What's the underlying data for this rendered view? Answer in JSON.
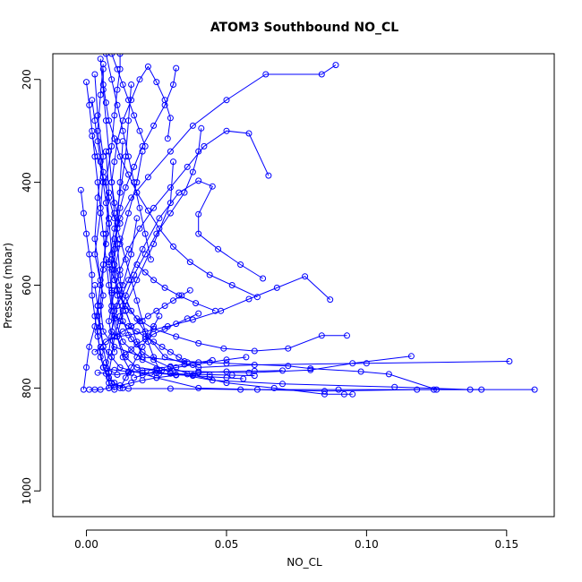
{
  "chart_data": {
    "type": "line",
    "title": "ATOM3 Southbound NO_CL",
    "xlabel": "NO_CL",
    "ylabel": "Pressure (mbar)",
    "xlim": [
      -0.012,
      0.167
    ],
    "ylim": [
      1050,
      150
    ],
    "y_reversed": true,
    "grid": false,
    "legend": "none",
    "x_ticks": [
      0.0,
      0.05,
      0.1,
      0.15
    ],
    "x_tick_labels": [
      "0.00",
      "0.05",
      "0.10",
      "0.15"
    ],
    "y_ticks": [
      200,
      400,
      600,
      800,
      1000
    ],
    "y_tick_labels": [
      "200",
      "400",
      "600",
      "800",
      "1000"
    ],
    "colors": {
      "series": "#0000ff",
      "axis": "#000000",
      "background": "#ffffff"
    },
    "marker": "open-circle",
    "series": [
      {
        "x": [
          0.16,
          0.124,
          0.09,
          0.055,
          0.03,
          0.015,
          0.008,
          0.005,
          0.004,
          0.006,
          0.003,
          0.005,
          0.006,
          0.004,
          0.005,
          0.006
        ],
        "y": [
          803,
          803,
          803,
          803,
          801,
          801,
          790,
          740,
          690,
          620,
          540,
          460,
          380,
          300,
          230,
          170
        ]
      },
      {
        "x": [
          0.151,
          0.1,
          0.06,
          0.04,
          0.028,
          0.022,
          0.016,
          0.012,
          0.009,
          0.008,
          0.007,
          0.009,
          0.01,
          0.011,
          0.012,
          0.012
        ],
        "y": [
          748,
          752,
          755,
          760,
          740,
          700,
          650,
          600,
          540,
          470,
          400,
          330,
          270,
          220,
          180,
          150
        ]
      },
      {
        "x": [
          0.141,
          0.118,
          0.085,
          0.061,
          0.04,
          0.025,
          0.012,
          0.006,
          0.004,
          0.005,
          0.003,
          0.004,
          0.006,
          0.004,
          0.003
        ],
        "y": [
          803,
          803,
          806,
          803,
          800,
          780,
          760,
          720,
          660,
          590,
          510,
          430,
          350,
          270,
          190
        ]
      },
      {
        "x": [
          0.137,
          0.11,
          0.07,
          0.045,
          0.03,
          0.02,
          0.013,
          0.01,
          0.009,
          0.008,
          0.01,
          0.012,
          0.014,
          0.015,
          0.016
        ],
        "y": [
          803,
          798,
          792,
          785,
          770,
          745,
          710,
          665,
          615,
          555,
          490,
          420,
          350,
          280,
          210
        ]
      },
      {
        "x": [
          0.125,
          0.108,
          0.098,
          0.08,
          0.072,
          0.05,
          0.035,
          0.02,
          0.01,
          0.006,
          0.005,
          0.006,
          0.007,
          0.008,
          0.007
        ],
        "y": [
          803,
          773,
          768,
          762,
          757,
          752,
          748,
          740,
          720,
          690,
          640,
          570,
          500,
          420,
          340
        ]
      },
      {
        "x": [
          0.116,
          0.095,
          0.08,
          0.058,
          0.04,
          0.025,
          0.018,
          0.014,
          0.011,
          0.013,
          0.018,
          0.024,
          0.03,
          0.031
        ],
        "y": [
          738,
          752,
          765,
          770,
          768,
          765,
          760,
          740,
          700,
          650,
          590,
          520,
          440,
          360
        ]
      },
      {
        "x": [
          0.095,
          0.092,
          0.085,
          0.067,
          0.05,
          0.038,
          0.03,
          0.024,
          0.02,
          0.016,
          0.013,
          0.011,
          0.01,
          0.011,
          0.012,
          0.013
        ],
        "y": [
          812,
          812,
          812,
          800,
          790,
          775,
          760,
          745,
          730,
          705,
          670,
          620,
          560,
          480,
          400,
          320
        ]
      },
      {
        "x": [
          0.093,
          0.084,
          0.072,
          0.06,
          0.049,
          0.04,
          0.032,
          0.024,
          0.018,
          0.014,
          0.011,
          0.01,
          0.012,
          0.015,
          0.018,
          0.02
        ],
        "y": [
          698,
          698,
          723,
          728,
          723,
          713,
          700,
          685,
          665,
          640,
          610,
          570,
          520,
          460,
          400,
          340
        ]
      },
      {
        "x": [
          0.087,
          0.078,
          0.068,
          0.058,
          0.048,
          0.038,
          0.029,
          0.021,
          0.015,
          0.011,
          0.009,
          0.01,
          0.013,
          0.016,
          0.018
        ],
        "y": [
          628,
          583,
          605,
          627,
          650,
          667,
          680,
          690,
          697,
          700,
          690,
          650,
          600,
          540,
          470
        ]
      },
      {
        "x": [
          0.089,
          0.084,
          0.064,
          0.05,
          0.038,
          0.03,
          0.022,
          0.016,
          0.012,
          0.01,
          0.009,
          0.01,
          0.012,
          0.014,
          0.016
        ],
        "y": [
          172,
          190,
          190,
          240,
          290,
          340,
          390,
          430,
          470,
          510,
          550,
          590,
          620,
          650,
          680
        ]
      },
      {
        "x": [
          0.065,
          0.058,
          0.05,
          0.042,
          0.036,
          0.03,
          0.024,
          0.019,
          0.015,
          0.012,
          0.01,
          0.009,
          0.008,
          0.009,
          0.01
        ],
        "y": [
          387,
          305,
          300,
          330,
          370,
          410,
          450,
          490,
          530,
          570,
          610,
          640,
          670,
          700,
          730
        ]
      },
      {
        "x": [
          0.063,
          0.055,
          0.047,
          0.04,
          0.04,
          0.045,
          0.04,
          0.033,
          0.026,
          0.02,
          0.015,
          0.011,
          0.009,
          0.008,
          0.007
        ],
        "y": [
          587,
          560,
          530,
          500,
          462,
          408,
          397,
          420,
          470,
          530,
          590,
          640,
          690,
          730,
          760
        ]
      },
      {
        "x": [
          0.061,
          0.052,
          0.044,
          0.037,
          0.031,
          0.026,
          0.022,
          0.018,
          0.015,
          0.012,
          0.01,
          0.008,
          0.007,
          0.006,
          0.006
        ],
        "y": [
          623,
          600,
          580,
          555,
          525,
          490,
          455,
          420,
          385,
          350,
          315,
          280,
          245,
          210,
          180
        ]
      },
      {
        "x": [
          0.041,
          0.04,
          0.038,
          0.035,
          0.03,
          0.025,
          0.021,
          0.017,
          0.014,
          0.012,
          0.01,
          0.009,
          0.008,
          0.008
        ],
        "y": [
          295,
          340,
          380,
          420,
          460,
          500,
          540,
          580,
          620,
          660,
          700,
          740,
          770,
          800
        ]
      },
      {
        "x": [
          0.032,
          0.031,
          0.028,
          0.024,
          0.02,
          0.017,
          0.014,
          0.012,
          0.011,
          0.01,
          0.009,
          0.009,
          0.009
        ],
        "y": [
          178,
          210,
          250,
          290,
          330,
          370,
          410,
          450,
          490,
          530,
          570,
          610,
          650
        ]
      },
      {
        "x": [
          0.029,
          0.03,
          0.028,
          0.025,
          0.022,
          0.019,
          0.016,
          0.013,
          0.011,
          0.01,
          0.009,
          0.01,
          0.012
        ],
        "y": [
          315,
          275,
          240,
          205,
          175,
          200,
          240,
          280,
          320,
          360,
          400,
          440,
          480
        ]
      },
      {
        "x": [
          0.001,
          0.003,
          0.005,
          0.008,
          0.01,
          0.012,
          0.016,
          0.02,
          0.025,
          0.032,
          0.04,
          0.05,
          0.06,
          0.07
        ],
        "y": [
          803,
          803,
          803,
          800,
          798,
          795,
          790,
          785,
          780,
          775,
          770,
          768,
          767,
          766
        ]
      },
      {
        "x": [
          -0.001,
          0.0,
          0.001,
          0.003,
          0.004,
          0.005,
          0.006,
          0.007,
          0.008,
          0.007,
          0.006,
          0.005,
          0.004,
          0.003,
          0.002
        ],
        "y": [
          803,
          760,
          720,
          680,
          640,
          600,
          560,
          520,
          480,
          440,
          400,
          360,
          320,
          280,
          240
        ]
      },
      {
        "x": [
          -0.002,
          -0.001,
          0.0,
          0.001,
          0.002,
          0.002,
          0.003,
          0.004,
          0.005,
          0.006,
          0.008,
          0.01,
          0.013
        ],
        "y": [
          415,
          460,
          500,
          540,
          580,
          620,
          660,
          700,
          730,
          760,
          780,
          790,
          800
        ]
      },
      {
        "x": [
          0.0,
          0.001,
          0.002,
          0.003,
          0.004,
          0.005,
          0.006,
          0.007,
          0.008,
          0.009,
          0.011,
          0.013,
          0.016
        ],
        "y": [
          205,
          250,
          300,
          350,
          400,
          450,
          500,
          550,
          600,
          650,
          700,
          740,
          770
        ]
      },
      {
        "x": [
          0.002,
          0.004,
          0.006,
          0.008,
          0.01,
          0.012,
          0.014,
          0.016,
          0.018,
          0.02,
          0.022,
          0.024,
          0.026
        ],
        "y": [
          310,
          350,
          390,
          430,
          470,
          510,
          550,
          590,
          630,
          670,
          710,
          740,
          765
        ]
      },
      {
        "x": [
          0.003,
          0.005,
          0.007,
          0.01,
          0.013,
          0.016,
          0.019,
          0.022,
          0.025,
          0.028,
          0.031,
          0.034,
          0.037
        ],
        "y": [
          730,
          720,
          710,
          700,
          690,
          680,
          670,
          660,
          650,
          640,
          630,
          620,
          610
        ]
      },
      {
        "x": [
          0.004,
          0.007,
          0.011,
          0.015,
          0.02,
          0.025,
          0.03,
          0.035,
          0.04,
          0.045
        ],
        "y": [
          770,
          772,
          774,
          770,
          766,
          762,
          758,
          754,
          750,
          746
        ]
      },
      {
        "x": [
          0.006,
          0.01,
          0.015,
          0.02,
          0.026,
          0.032,
          0.038,
          0.044,
          0.05,
          0.056
        ],
        "y": [
          760,
          765,
          768,
          770,
          772,
          774,
          776,
          778,
          780,
          782
        ]
      },
      {
        "x": [
          0.01,
          0.012,
          0.015,
          0.018,
          0.021,
          0.024,
          0.027,
          0.03,
          0.033,
          0.036
        ],
        "y": [
          660,
          670,
          680,
          690,
          700,
          710,
          720,
          730,
          740,
          750
        ]
      },
      {
        "x": [
          0.012,
          0.014,
          0.016,
          0.018,
          0.02,
          0.022,
          0.024,
          0.026
        ],
        "y": [
          800,
          780,
          760,
          740,
          720,
          700,
          680,
          660
        ]
      },
      {
        "x": [
          0.014,
          0.016,
          0.018,
          0.021,
          0.024,
          0.028,
          0.032,
          0.036,
          0.04
        ],
        "y": [
          735,
          725,
          715,
          705,
          695,
          685,
          675,
          665,
          655
        ]
      },
      {
        "x": [
          0.017,
          0.02,
          0.023,
          0.027,
          0.032,
          0.038,
          0.044,
          0.05,
          0.057
        ],
        "y": [
          780,
          775,
          770,
          765,
          760,
          755,
          750,
          745,
          740
        ]
      },
      {
        "x": [
          0.005,
          0.006,
          0.007,
          0.008,
          0.009,
          0.01,
          0.011,
          0.012,
          0.013
        ],
        "y": [
          160,
          220,
          280,
          340,
          400,
          460,
          520,
          580,
          640
        ]
      },
      {
        "x": [
          0.007,
          0.009,
          0.011,
          0.013,
          0.015,
          0.017,
          0.019,
          0.021,
          0.023
        ],
        "y": [
          150,
          200,
          250,
          300,
          350,
          400,
          450,
          500,
          550
        ]
      },
      {
        "x": [
          0.003,
          0.004,
          0.005,
          0.006,
          0.007,
          0.008,
          0.009,
          0.01
        ],
        "y": [
          600,
          640,
          680,
          720,
          750,
          770,
          790,
          803
        ]
      },
      {
        "x": [
          0.008,
          0.01,
          0.012,
          0.014,
          0.016,
          0.018,
          0.02
        ],
        "y": [
          560,
          590,
          620,
          650,
          680,
          710,
          740
        ]
      },
      {
        "x": [
          0.018,
          0.021,
          0.024,
          0.028,
          0.033,
          0.039,
          0.046
        ],
        "y": [
          560,
          575,
          590,
          605,
          620,
          635,
          650
        ]
      },
      {
        "x": [
          0.009,
          0.011,
          0.013,
          0.015,
          0.017,
          0.019,
          0.021
        ],
        "y": [
          150,
          180,
          210,
          240,
          270,
          300,
          330
        ]
      },
      {
        "x": [
          0.02,
          0.025,
          0.03,
          0.036,
          0.044,
          0.052,
          0.06
        ],
        "y": [
          770,
          771,
          772,
          773,
          774,
          775,
          776
        ]
      }
    ]
  }
}
